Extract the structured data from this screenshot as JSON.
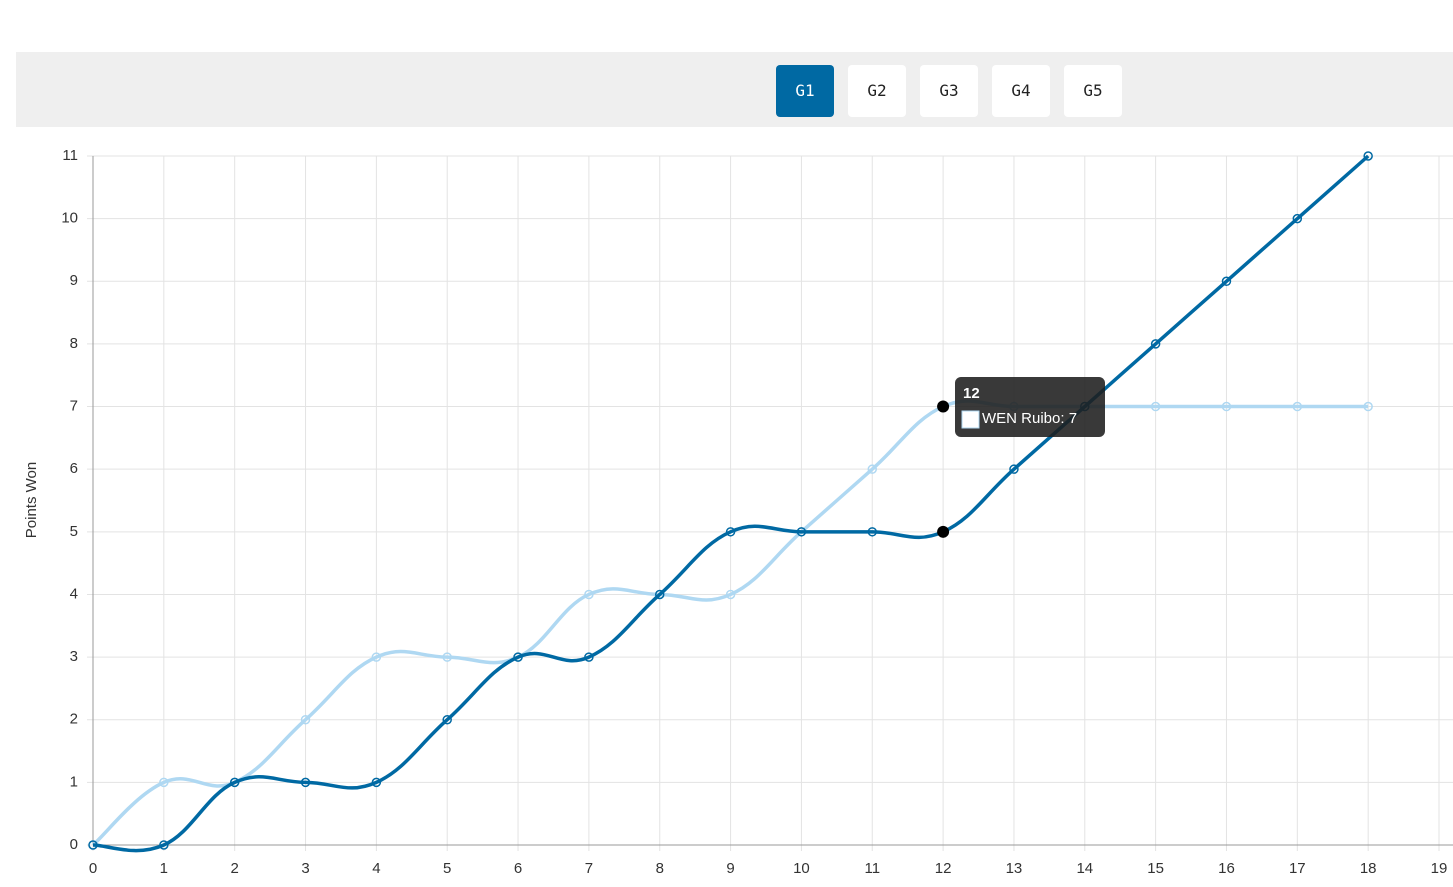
{
  "tabs": [
    "G1",
    "G2",
    "G3",
    "G4",
    "G5"
  ],
  "chart_data": {
    "type": "line",
    "y_label": "Points Won",
    "x": [
      0,
      1,
      2,
      3,
      4,
      5,
      6,
      7,
      8,
      9,
      10,
      11,
      12,
      13,
      14,
      15,
      16,
      17,
      18
    ],
    "series": [
      {
        "color": "#afd8f2",
        "values": [
          0,
          1,
          1,
          2,
          3,
          3,
          3,
          4,
          4,
          4,
          5,
          6,
          7,
          7,
          7,
          7,
          7,
          7,
          7
        ]
      },
      {
        "color": "#0069a3",
        "values": [
          0,
          0,
          1,
          1,
          1,
          2,
          3,
          3,
          4,
          5,
          5,
          5,
          5,
          6,
          7,
          8,
          9,
          10,
          11
        ]
      }
    ],
    "xlim": [
      0,
      19
    ],
    "ylim": [
      0,
      11
    ],
    "xticks": [
      0,
      1,
      2,
      3,
      4,
      5,
      6,
      7,
      8,
      9,
      10,
      11,
      12,
      13,
      14,
      15,
      16,
      17,
      18,
      19
    ],
    "yticks": [
      0,
      1,
      2,
      3,
      4,
      5,
      6,
      7,
      8,
      9,
      10,
      11
    ],
    "grid": true,
    "tooltip": {
      "title": "12",
      "label": "WEN Ruibo: 7"
    }
  }
}
